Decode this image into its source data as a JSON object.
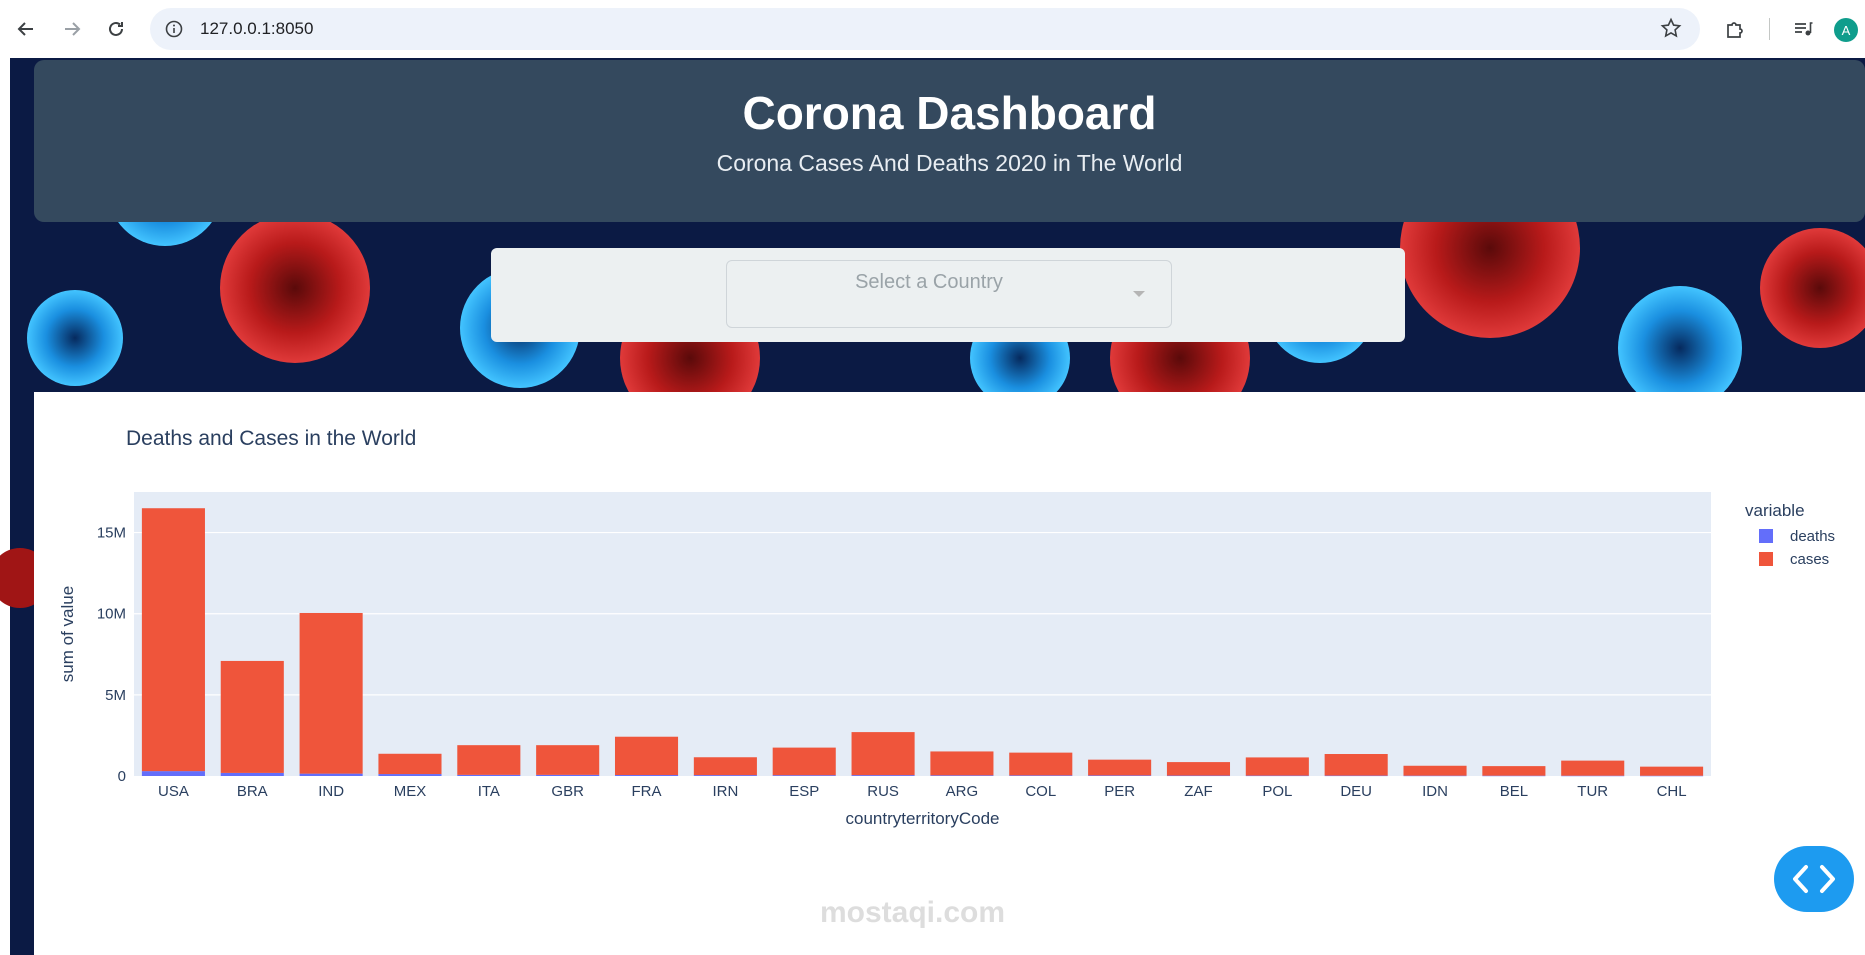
{
  "browser": {
    "url": "127.0.0.1:8050",
    "profile_initial": "A"
  },
  "header": {
    "title": "Corona Dashboard",
    "subtitle": "Corona Cases And Deaths 2020 in The World"
  },
  "country_select": {
    "placeholder": "Select a Country"
  },
  "watermark": "mostaqi.com",
  "chart_data": {
    "type": "bar",
    "stacked": true,
    "title": "Deaths and Cases in the World",
    "xlabel": "countryterritoryCode",
    "ylabel": "sum of value",
    "ylim": [
      0,
      17500000
    ],
    "yticks": [
      0,
      5000000,
      10000000,
      15000000
    ],
    "ytick_labels": [
      "0",
      "5M",
      "10M",
      "15M"
    ],
    "legend_title": "variable",
    "legend_position": "right",
    "grid": true,
    "categories": [
      "USA",
      "BRA",
      "IND",
      "MEX",
      "ITA",
      "GBR",
      "FRA",
      "IRN",
      "ESP",
      "RUS",
      "ARG",
      "COL",
      "PER",
      "ZAF",
      "POL",
      "DEU",
      "IDN",
      "BEL",
      "TUR",
      "CHL"
    ],
    "series": [
      {
        "name": "deaths",
        "color": "#636efa",
        "values": [
          300000,
          190000,
          145000,
          120000,
          70000,
          70000,
          60000,
          55000,
          50000,
          55000,
          43000,
          40000,
          37000,
          27000,
          25000,
          25000,
          21000,
          19000,
          18000,
          16000
        ]
      },
      {
        "name": "cases",
        "color": "#ef553b",
        "values": [
          16200000,
          6900000,
          9900000,
          1250000,
          1830000,
          1830000,
          2360000,
          1100000,
          1700000,
          2650000,
          1470000,
          1400000,
          970000,
          830000,
          1120000,
          1330000,
          610000,
          590000,
          930000,
          560000
        ]
      }
    ]
  }
}
